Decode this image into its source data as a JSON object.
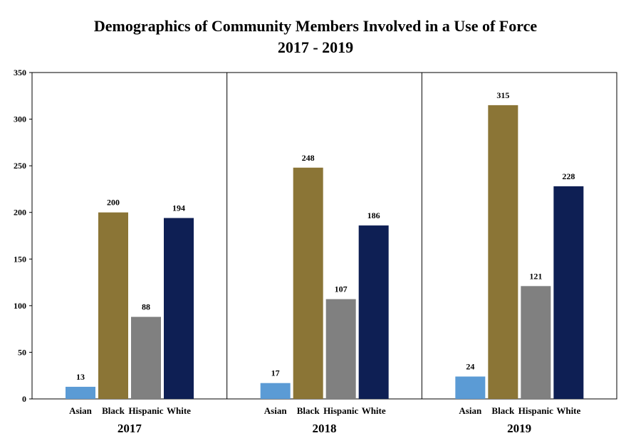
{
  "chart_data": {
    "type": "bar",
    "title": "Demographics of Community Members Involved in a Use of Force",
    "subtitle": "2017 - 2019",
    "ylim": [
      0,
      350
    ],
    "yticks": [
      0,
      50,
      100,
      150,
      200,
      250,
      300,
      350
    ],
    "categories": [
      "Asian",
      "Black",
      "Hispanic",
      "White"
    ],
    "groups": [
      "2017",
      "2018",
      "2019"
    ],
    "series": [
      {
        "group": "2017",
        "values": [
          13,
          200,
          88,
          194
        ]
      },
      {
        "group": "2018",
        "values": [
          17,
          248,
          107,
          186
        ]
      },
      {
        "group": "2019",
        "values": [
          24,
          315,
          121,
          228
        ]
      }
    ],
    "colors": [
      "#5b9bd5",
      "#8b7536",
      "#808080",
      "#0e1f54"
    ],
    "grid": false,
    "legend": "none"
  }
}
